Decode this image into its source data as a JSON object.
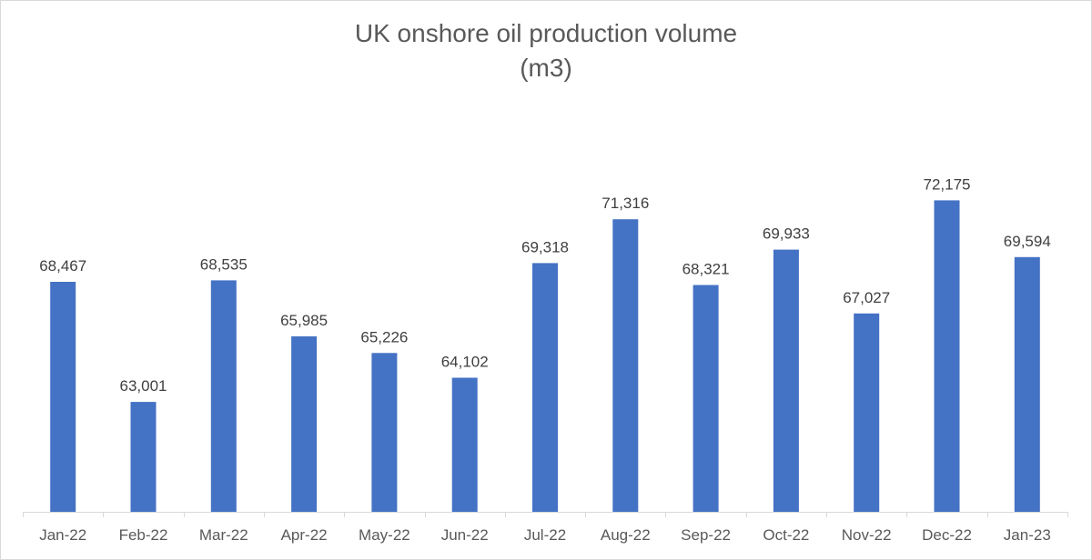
{
  "chart_data": {
    "type": "bar",
    "title": "UK onshore oil production volume",
    "subtitle": "(m3)",
    "categories": [
      "Jan-22",
      "Feb-22",
      "Mar-22",
      "Apr-22",
      "May-22",
      "Jun-22",
      "Jul-22",
      "Aug-22",
      "Sep-22",
      "Oct-22",
      "Nov-22",
      "Dec-22",
      "Jan-23"
    ],
    "values": [
      68467,
      63001,
      68535,
      65985,
      65226,
      64102,
      69318,
      71316,
      68321,
      69933,
      67027,
      72175,
      69594
    ],
    "data_labels": [
      "68,467",
      "63,001",
      "68,535",
      "65,985",
      "65,226",
      "64,102",
      "69,318",
      "71,316",
      "68,321",
      "69,933",
      "67,027",
      "72,175",
      "69,594"
    ],
    "ylim": [
      58000,
      74000
    ],
    "xlabel": "",
    "ylabel": "",
    "grid": false,
    "legend": "none",
    "bar_color": "#4472c4"
  }
}
